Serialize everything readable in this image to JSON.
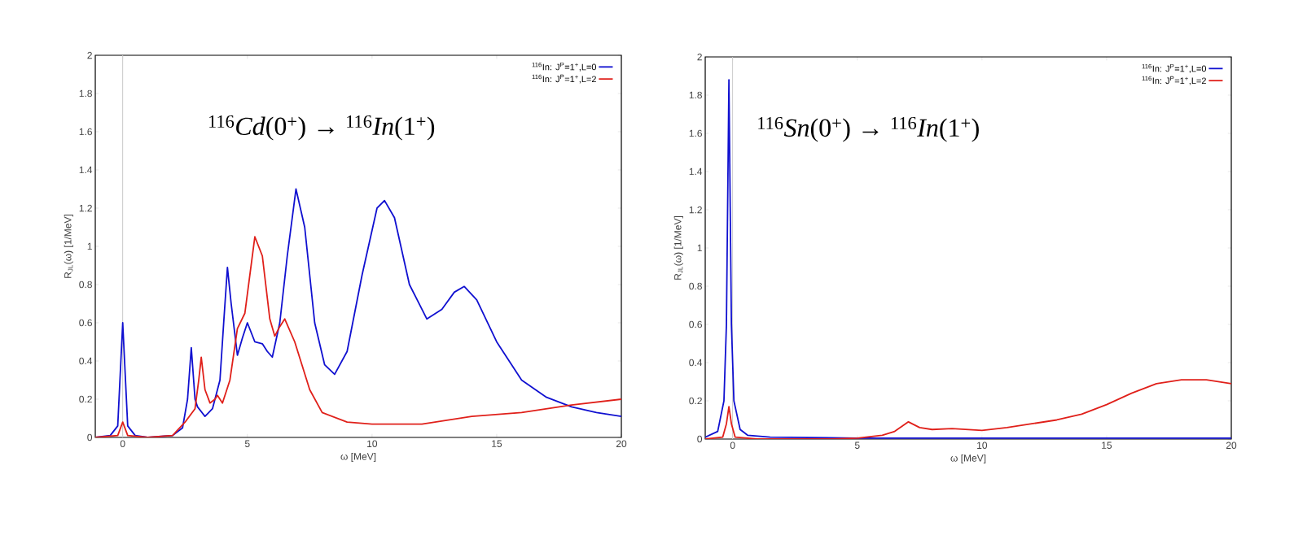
{
  "chart_data": [
    {
      "type": "line",
      "xlabel": "ω [MeV]",
      "ylabel": "R$_{JL}$(ω) [1/MeV]",
      "annotations": [
        "$^{116}$*Cd*(0$^{+}$) → $^{116}$*In*(1$^{+}$)"
      ],
      "xlim": [
        -1.1,
        20
      ],
      "ylim": [
        0,
        2
      ],
      "xticks": [
        0,
        5,
        10,
        15,
        20
      ],
      "yticks": [
        0,
        0.2,
        0.4,
        0.6,
        0.8,
        1,
        1.2,
        1.4,
        1.6,
        1.8,
        2
      ],
      "legend": "top right",
      "grid": false,
      "ref_lines": [
        {
          "axis": "x",
          "value": 0,
          "color": "#cccccc"
        }
      ],
      "series": [
        {
          "name": "$^{116}$In: J$^{P}$=1$^{+}$,L=0",
          "color": "#1010d0",
          "x": [
            -1.1,
            -0.5,
            -0.2,
            0,
            0.2,
            0.5,
            1,
            2,
            2.4,
            2.6,
            2.75,
            2.9,
            3.0,
            3.3,
            3.6,
            3.9,
            4.05,
            4.2,
            4.35,
            4.6,
            4.8,
            5.0,
            5.3,
            5.6,
            5.8,
            6.0,
            6.3,
            6.6,
            6.95,
            7.3,
            7.7,
            8.1,
            8.5,
            9.0,
            9.6,
            10.2,
            10.5,
            10.9,
            11.5,
            12.2,
            12.8,
            13.3,
            13.7,
            14.2,
            15,
            16,
            17,
            18,
            19,
            20
          ],
          "values": [
            0.0,
            0.01,
            0.06,
            0.6,
            0.06,
            0.01,
            0.0,
            0.01,
            0.05,
            0.2,
            0.47,
            0.2,
            0.16,
            0.11,
            0.15,
            0.3,
            0.6,
            0.89,
            0.7,
            0.43,
            0.52,
            0.6,
            0.5,
            0.49,
            0.45,
            0.42,
            0.6,
            0.95,
            1.3,
            1.1,
            0.6,
            0.38,
            0.33,
            0.45,
            0.85,
            1.2,
            1.24,
            1.15,
            0.8,
            0.62,
            0.67,
            0.76,
            0.79,
            0.72,
            0.5,
            0.3,
            0.21,
            0.16,
            0.13,
            0.11
          ]
        },
        {
          "name": "$^{116}$In: J$^{P}$=1$^{+}$,L=2",
          "color": "#e0201a",
          "x": [
            -1.1,
            -0.2,
            0,
            0.2,
            1,
            2,
            2.5,
            2.9,
            3.05,
            3.15,
            3.3,
            3.5,
            3.7,
            3.8,
            4.0,
            4.3,
            4.6,
            4.9,
            5.1,
            5.3,
            5.6,
            5.9,
            6.1,
            6.3,
            6.5,
            6.9,
            7.5,
            8,
            9,
            10,
            11,
            12,
            13,
            14,
            16,
            18,
            20
          ],
          "values": [
            0,
            0.01,
            0.08,
            0.01,
            0,
            0.01,
            0.08,
            0.15,
            0.3,
            0.42,
            0.25,
            0.18,
            0.2,
            0.22,
            0.18,
            0.3,
            0.57,
            0.65,
            0.85,
            1.05,
            0.95,
            0.62,
            0.53,
            0.58,
            0.62,
            0.5,
            0.25,
            0.13,
            0.08,
            0.07,
            0.07,
            0.07,
            0.09,
            0.11,
            0.13,
            0.17,
            0.2
          ]
        }
      ]
    },
    {
      "type": "line",
      "xlabel": "ω [MeV]",
      "ylabel": "R$_{JL}$(ω) [1/MeV]",
      "annotations": [
        "$^{116}$*Sn*(0$^{+}$) → $^{116}$*In*(1$^{+}$)"
      ],
      "xlim": [
        -1.1,
        20
      ],
      "ylim": [
        0,
        2
      ],
      "xticks": [
        0,
        5,
        10,
        15,
        20
      ],
      "yticks": [
        0,
        0.2,
        0.4,
        0.6,
        0.8,
        1,
        1.2,
        1.4,
        1.6,
        1.8,
        2
      ],
      "legend": "top right",
      "grid": false,
      "ref_lines": [
        {
          "axis": "x",
          "value": 0,
          "color": "#cccccc"
        }
      ],
      "series": [
        {
          "name": "$^{116}$In: J$^{P}$=1$^{+}$,L=0",
          "color": "#1010d0",
          "x": [
            -1.1,
            -0.6,
            -0.35,
            -0.25,
            -0.15,
            -0.05,
            0.05,
            0.3,
            0.6,
            1.5,
            5,
            10,
            20
          ],
          "values": [
            0.01,
            0.04,
            0.2,
            0.6,
            1.88,
            0.6,
            0.2,
            0.05,
            0.02,
            0.01,
            0.005,
            0.005,
            0.005
          ]
        },
        {
          "name": "$^{116}$In: J$^{P}$=1$^{+}$,L=2",
          "color": "#e0201a",
          "x": [
            -1.1,
            -0.4,
            -0.25,
            -0.15,
            -0.05,
            0.1,
            1,
            4,
            5,
            6,
            6.5,
            7.05,
            7.5,
            8,
            8.8,
            10,
            11,
            12,
            13,
            14,
            15,
            16,
            17,
            18,
            19,
            20
          ],
          "values": [
            0,
            0.01,
            0.08,
            0.17,
            0.08,
            0.01,
            0,
            0,
            0.005,
            0.02,
            0.04,
            0.09,
            0.06,
            0.05,
            0.055,
            0.045,
            0.06,
            0.08,
            0.1,
            0.13,
            0.18,
            0.24,
            0.29,
            0.31,
            0.31,
            0.29
          ]
        }
      ]
    }
  ]
}
